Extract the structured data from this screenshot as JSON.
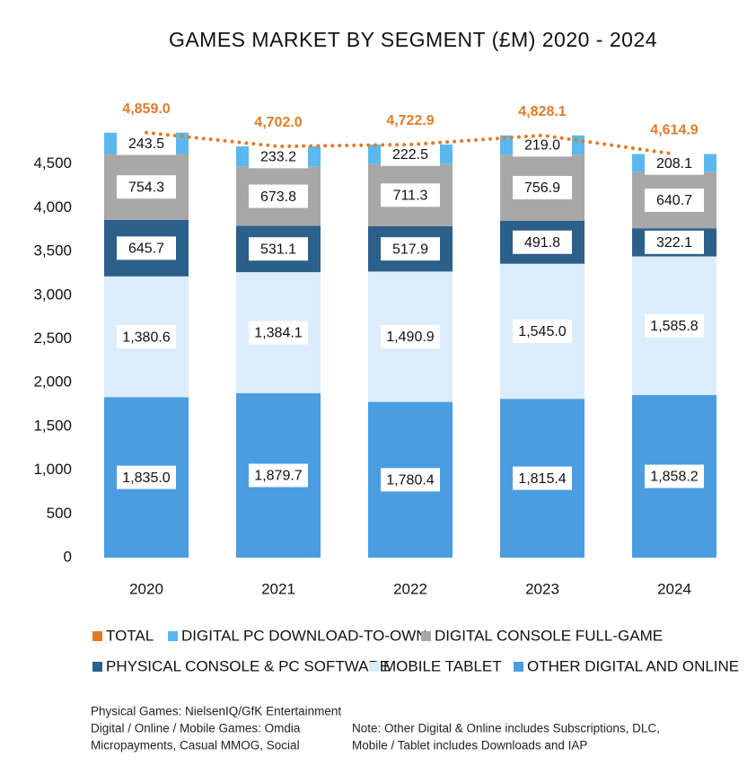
{
  "chart_data": {
    "type": "stacked-bar",
    "title": "GAMES MARKET BY SEGMENT (£M) 2020 - 2024",
    "categories": [
      "2020",
      "2021",
      "2022",
      "2023",
      "2024"
    ],
    "ylim": [
      0,
      5000
    ],
    "yticks": [
      0,
      500,
      {
        "value": 1000,
        "label": "1,000"
      },
      {
        "value": 1500,
        "label": "1,500"
      },
      {
        "value": 2000,
        "label": "2,000"
      },
      {
        "value": 2500,
        "label": "2,500"
      },
      {
        "value": 3000,
        "label": "3,000"
      },
      {
        "value": 3500,
        "label": "3,500"
      },
      {
        "value": 4000,
        "label": "4,000"
      },
      {
        "value": 4500,
        "label": "4,500"
      }
    ],
    "grid": false,
    "series": [
      {
        "name": "OTHER DIGITAL AND ONLINE",
        "color": "#4a9de0",
        "values": [
          1835.0,
          1879.7,
          1780.4,
          1815.4,
          1858.2
        ],
        "value_labels": [
          "1,835.0",
          "1,879.7",
          "1,780.4",
          "1,815.4",
          "1,858.2"
        ]
      },
      {
        "name": "MOBILE TABLET",
        "color": "#dbecfa",
        "values": [
          1380.6,
          1384.1,
          1490.9,
          1545.0,
          1585.8
        ],
        "value_labels": [
          "1,380.6",
          "1,384.1",
          "1,490.9",
          "1,545.0",
          "1,585.8"
        ]
      },
      {
        "name": "PHYSICAL CONSOLE & PC SOFTWARE",
        "color": "#2c5f8a",
        "values": [
          645.7,
          531.1,
          517.9,
          491.8,
          322.1
        ],
        "value_labels": [
          "645.7",
          "531.1",
          "517.9",
          "491.8",
          "322.1"
        ]
      },
      {
        "name": "DIGITAL CONSOLE FULL-GAME",
        "color": "#a8a8a8",
        "values": [
          754.3,
          673.8,
          711.3,
          756.9,
          640.7
        ],
        "value_labels": [
          "754.3",
          "673.8",
          "711.3",
          "756.9",
          "640.7"
        ]
      },
      {
        "name": "DIGITAL PC DOWNLOAD-TO-OWN",
        "color": "#5bb8ef",
        "values": [
          243.5,
          233.2,
          222.5,
          219.0,
          208.1
        ],
        "value_labels": [
          "243.5",
          "233.2",
          "222.5",
          "219.0",
          "208.1"
        ]
      },
      {
        "name": "TOTAL",
        "type": "line",
        "color": "#e07b2a",
        "values": [
          4859.0,
          4702.0,
          4722.9,
          4828.1,
          4614.9
        ],
        "value_labels": [
          "4,859.0",
          "4,702.0",
          "4,722.9",
          "4,828.1",
          "4,614.9"
        ]
      }
    ],
    "sources": [
      "Physical Games: NielsenIQ/GfK Entertainment",
      "Digital / Online / Mobile Games: Omdia",
      "Micropayments, Casual MMOG, Social"
    ],
    "notes": [
      "Note: Other Digital & Online includes Subscriptions, DLC,",
      "Mobile / Tablet includes Downloads and IAP"
    ]
  }
}
